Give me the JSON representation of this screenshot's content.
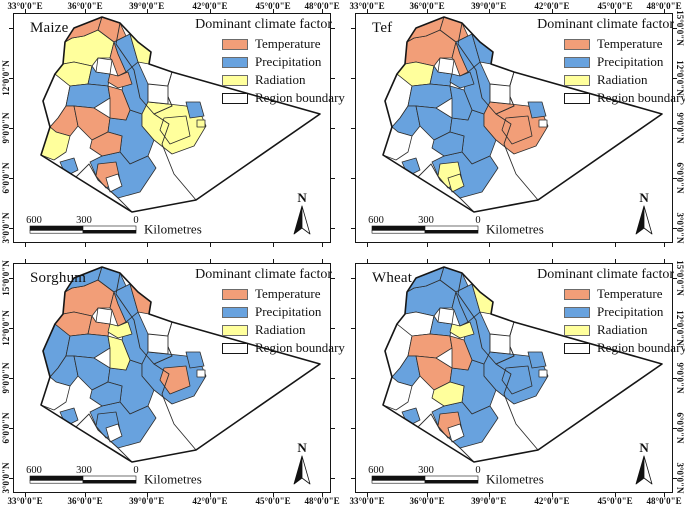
{
  "figure": {
    "background": "#ffffff"
  },
  "colors": {
    "T": "#F29E78",
    "P": "#68A2DE",
    "R": "#FFFF9C",
    "W": "#FFFFFF",
    "outline": "#161616",
    "zone_border": "#2e2e2e"
  },
  "legend": {
    "title": "Dominant climate factor",
    "items": [
      {
        "key": "T",
        "label": "Temperature"
      },
      {
        "key": "P",
        "label": "Precipitation"
      },
      {
        "key": "R",
        "label": "Radiation"
      },
      {
        "key": "B",
        "label": "Region boundary"
      }
    ]
  },
  "axes": {
    "lon_labels": [
      "33°0'0\"E",
      "36°0'0\"E",
      "39°0'0\"E",
      "42°0'0\"E",
      "45°0'0\"E",
      "48°0'0\"E"
    ],
    "lat_labels_full": [
      "15°0'0\"N",
      "12°0'0\"N",
      "9°0'0\"N",
      "6°0'0\"N",
      "3°0'0\"N"
    ]
  },
  "scalebar": {
    "labels": [
      "600",
      "300",
      "0"
    ],
    "unit": "Kilometres"
  },
  "north_label": "N",
  "panels": [
    {
      "id": "maize",
      "title": "Maize",
      "lat_side": "left",
      "lon_side": "top",
      "lat_labels": [
        "12°0'0\"N",
        "9°0'0\"N",
        "6°0'0\"N",
        "3°0'0\"N"
      ],
      "lat_fracs": [
        0.28,
        0.5,
        0.72,
        0.94
      ],
      "zones": {
        "z1": "T",
        "z2": "T",
        "z3": "P",
        "z4": "R",
        "z5": "R",
        "z5b": "W",
        "z6": "T",
        "z6b": "T",
        "z7w": "R",
        "z7e": "P",
        "z8": "W",
        "z9": "P",
        "z10": "P",
        "z11": "T",
        "z12": "R",
        "z12b": "R",
        "z13": "P",
        "z13b": "R",
        "z14": "T",
        "z15": "R",
        "z16": "T",
        "z16b": "T",
        "z17": "P",
        "z18": "P",
        "z19": "P",
        "z20": "W",
        "z21": "T"
      }
    },
    {
      "id": "tef",
      "title": "Tef",
      "lat_side": "right",
      "lon_side": "top",
      "lat_labels": [
        "15°0'0\"N",
        "12°0'0\"N",
        "9°0'0\"N",
        "6°0'0\"N",
        "3°0'0\"N"
      ],
      "lat_fracs": [
        0.06,
        0.28,
        0.5,
        0.72,
        0.94
      ],
      "zones": {
        "z1": "T",
        "z2": "T",
        "z3": "P",
        "z4": "P",
        "z5": "T",
        "z5b": "W",
        "z6": "T",
        "z6b": "P",
        "z7w": "R",
        "z7e": "P",
        "z8": "W",
        "z9": "P",
        "z10": "P",
        "z11": "P",
        "z12": "T",
        "z12b": "T",
        "z13": "P",
        "z13b": "W",
        "z14": "P",
        "z15": "W",
        "z16": "P",
        "z16b": "P",
        "z17": "P",
        "z18": "P",
        "z19": "P",
        "z20": "R",
        "z21": "R"
      }
    },
    {
      "id": "sorghum",
      "title": "Sorghum",
      "lat_side": "left",
      "lon_side": "bottom",
      "lat_labels": [
        "15°0'0\"N",
        "12°0'0\"N",
        "9°0'0\"N",
        "6°0'0\"N",
        "3°0'0\"N"
      ],
      "lat_fracs": [
        0.06,
        0.28,
        0.5,
        0.72,
        0.94
      ],
      "zones": {
        "z1": "P",
        "z2": "P",
        "z3": "P",
        "z4": "T",
        "z5": "T",
        "z5b": "W",
        "z6": "T",
        "z6b": "R",
        "z7w": "T",
        "z7e": "T",
        "z8": "P",
        "z9": "P",
        "z10": "P",
        "z11": "R",
        "z12": "P",
        "z12b": "T",
        "z13": "P",
        "z13b": "W",
        "z14": "P",
        "z15": "W",
        "z16": "P",
        "z16b": "P",
        "z17": "P",
        "z18": "P",
        "z19": "P",
        "z20": "W",
        "z21": "P"
      }
    },
    {
      "id": "wheat",
      "title": "Wheat",
      "lat_side": "right",
      "lon_side": "bottom",
      "lat_labels": [
        "15°0'0\"N",
        "12°0'0\"N",
        "9°0'0\"N",
        "6°0'0\"N",
        "3°0'0\"N"
      ],
      "lat_fracs": [
        0.06,
        0.28,
        0.5,
        0.72,
        0.94
      ],
      "zones": {
        "z1": "P",
        "z2": "P",
        "z3": "P",
        "z4": "R",
        "z5": "P",
        "z5b": "W",
        "z6": "P",
        "z6b": "R",
        "z7w": "W",
        "z7e": "P",
        "z8": "W",
        "z9": "P",
        "z10": "T",
        "z11": "T",
        "z12": "P",
        "z12b": "P",
        "z13": "P",
        "z13b": "W",
        "z14": "P",
        "z15": "W",
        "z16": "T",
        "z16b": "R",
        "z17": "P",
        "z18": "P",
        "z19": "P",
        "z20": "W",
        "z21": "T"
      }
    }
  ]
}
